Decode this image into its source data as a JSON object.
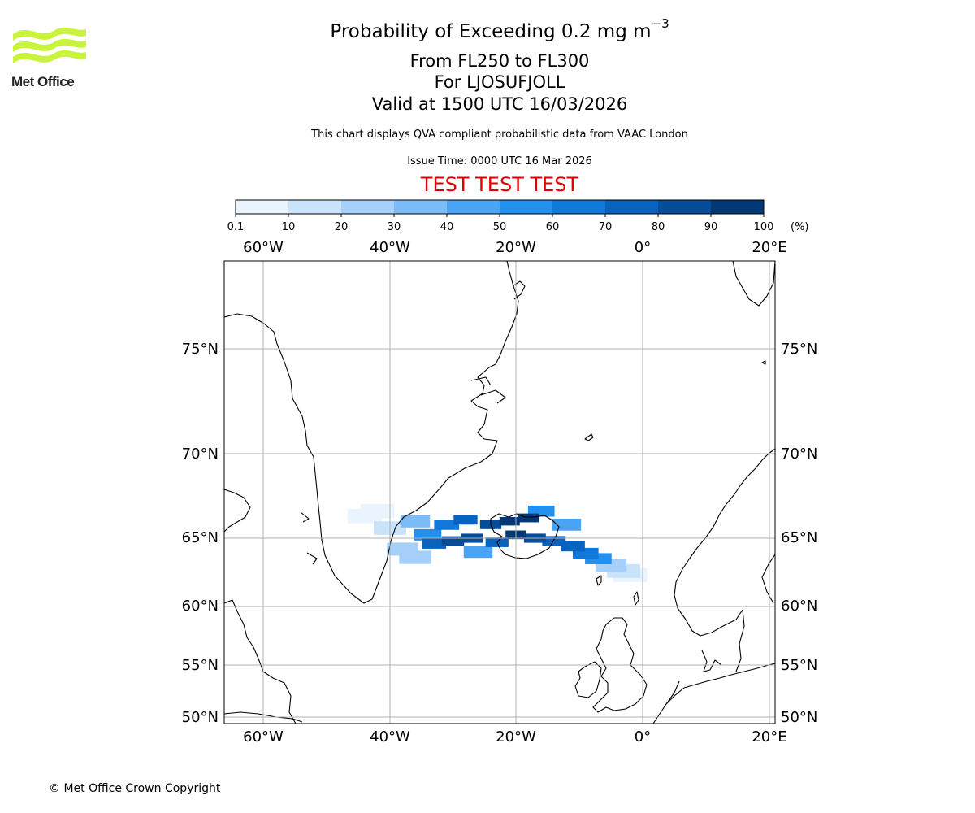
{
  "header": {
    "title_main": "Probability of Exceeding 0.2 mg m",
    "title_exp": "−3",
    "flight_levels": "From FL250 to FL300",
    "volcano": "For LJOSUFJOLL",
    "valid": "Valid at 1500 UTC 16/03/2026",
    "disclaimer": "This chart displays QVA compliant probabilistic data from VAAC London",
    "issue_time": "Issue Time: 0000 UTC 16 Mar 2026",
    "test_banner": "TEST TEST TEST"
  },
  "logo": {
    "text": "Met Office",
    "color": "#c8f53c"
  },
  "colorbar": {
    "ticks": [
      "0.1",
      "10",
      "20",
      "30",
      "40",
      "50",
      "60",
      "70",
      "80",
      "90",
      "100"
    ],
    "unit": "(%)",
    "colors": [
      "#eaf4fe",
      "#c9e3fb",
      "#a6d0f9",
      "#7cbcf6",
      "#4aa3f3",
      "#2290ef",
      "#0f78da",
      "#0963be",
      "#064d99",
      "#033874",
      "#022451"
    ]
  },
  "map": {
    "lon_labels": [
      "60°W",
      "40°W",
      "20°W",
      "0°",
      "20°E"
    ],
    "lat_labels": [
      "75°N",
      "70°N",
      "65°N",
      "60°N",
      "55°N",
      "50°N"
    ],
    "plume": [
      {
        "lon": -44,
        "lat": 66.3,
        "prob": 5
      },
      {
        "lon": -42,
        "lat": 66.6,
        "prob": 8
      },
      {
        "lon": -40,
        "lat": 65.6,
        "prob": 18
      },
      {
        "lon": -38,
        "lat": 64.2,
        "prob": 25
      },
      {
        "lon": -36,
        "lat": 66.0,
        "prob": 35
      },
      {
        "lon": -36,
        "lat": 63.6,
        "prob": 20
      },
      {
        "lon": -34,
        "lat": 65.2,
        "prob": 50
      },
      {
        "lon": -33,
        "lat": 64.6,
        "prob": 70
      },
      {
        "lon": -31,
        "lat": 65.8,
        "prob": 65
      },
      {
        "lon": -30,
        "lat": 64.8,
        "prob": 82
      },
      {
        "lon": -28,
        "lat": 66.1,
        "prob": 72
      },
      {
        "lon": -27,
        "lat": 65.0,
        "prob": 85
      },
      {
        "lon": -26,
        "lat": 64.0,
        "prob": 40
      },
      {
        "lon": -24,
        "lat": 65.8,
        "prob": 88
      },
      {
        "lon": -23,
        "lat": 64.7,
        "prob": 78
      },
      {
        "lon": -21,
        "lat": 66.0,
        "prob": 95
      },
      {
        "lon": -20,
        "lat": 65.2,
        "prob": 92
      },
      {
        "lon": -18,
        "lat": 66.2,
        "prob": 90
      },
      {
        "lon": -17,
        "lat": 65.0,
        "prob": 85
      },
      {
        "lon": -16,
        "lat": 66.6,
        "prob": 55
      },
      {
        "lon": -14,
        "lat": 64.8,
        "prob": 75
      },
      {
        "lon": -12,
        "lat": 65.8,
        "prob": 40
      },
      {
        "lon": -11,
        "lat": 64.4,
        "prob": 72
      },
      {
        "lon": -9,
        "lat": 63.9,
        "prob": 60
      },
      {
        "lon": -7,
        "lat": 63.5,
        "prob": 55
      },
      {
        "lon": -5,
        "lat": 63.0,
        "prob": 25
      },
      {
        "lon": -3,
        "lat": 62.6,
        "prob": 12
      },
      {
        "lon": -2,
        "lat": 62.3,
        "prob": 6
      }
    ]
  },
  "footer": {
    "copyright": "© Met Office Crown Copyright"
  }
}
